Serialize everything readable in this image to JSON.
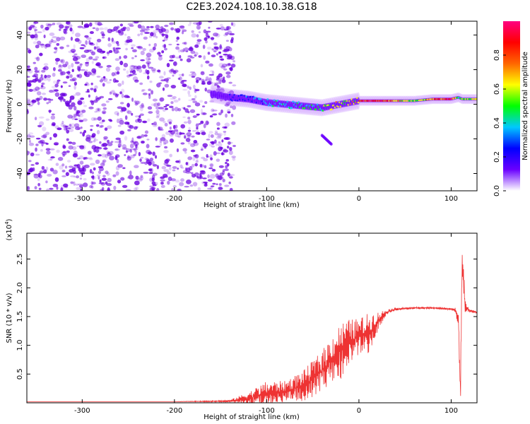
{
  "figure_title": "C2E3.2024.108.10.38.G18",
  "chart_data": [
    {
      "type": "heatmap",
      "title": "C2E3.2024.108.10.38.G18",
      "xlabel": "Height of straight line (km)",
      "ylabel": "Frequency (Hz)",
      "xlim": [
        -360,
        128
      ],
      "ylim": [
        -50,
        48
      ],
      "x_ticks": [
        -300,
        -200,
        -100,
        0,
        100
      ],
      "y_ticks": [
        -40,
        -20,
        0,
        20,
        40
      ],
      "colorbar": {
        "label": "Normalized spectral amplitude",
        "range": [
          0,
          1
        ],
        "ticks": [
          0.0,
          0.2,
          0.4,
          0.6,
          0.8
        ],
        "tick_labels": [
          "0.0",
          "0.2",
          "0.4",
          "0.6",
          "0.8"
        ],
        "colors": [
          "#ffffff",
          "#6a00ff",
          "#0000ff",
          "#00c8ff",
          "#00ff00",
          "#ffff00",
          "#ff6600",
          "#ff0000",
          "#ff0080"
        ]
      },
      "noise_region": {
        "x": [
          -360,
          -145
        ],
        "freq": [
          -50,
          48
        ],
        "color": "#6a00e0"
      },
      "signal_track": {
        "x": [
          -160,
          -140,
          -120,
          -100,
          -80,
          -60,
          -40,
          -30,
          -20,
          -10,
          0,
          20,
          40,
          60,
          80,
          100,
          108,
          112,
          128
        ],
        "freq": [
          6,
          4,
          3,
          1,
          0,
          -1,
          -2,
          -1,
          0,
          1,
          2,
          2,
          2,
          2,
          3,
          3,
          4,
          3,
          3
        ],
        "amplitude": [
          0.1,
          0.2,
          0.3,
          0.4,
          0.45,
          0.45,
          0.5,
          0.6,
          0.7,
          0.6,
          0.8,
          0.95,
          0.7,
          0.55,
          0.75,
          0.95,
          0.4,
          0.6,
          0.6
        ]
      },
      "secondary_feature": {
        "x": [
          -40,
          -30
        ],
        "freq": [
          -18,
          -23
        ]
      }
    },
    {
      "type": "line",
      "xlabel": "Height of straight line (km)",
      "ylabel": "SNR (10 * v/v)",
      "y_multiplier_label": "(x10",
      "y_multiplier_exponent": "4",
      "xlim": [
        -360,
        128
      ],
      "ylim": [
        0,
        2.95
      ],
      "x_ticks": [
        -300,
        -200,
        -100,
        0,
        100
      ],
      "y_ticks": [
        0.5,
        1.0,
        1.5,
        2.0,
        2.5
      ],
      "y_tick_labels": [
        "0.5",
        "1.0",
        "1.5",
        "2.0",
        "2.5"
      ],
      "series": [
        {
          "name": "SNR",
          "color": "#ee3333",
          "x": [
            -360,
            -300,
            -200,
            -140,
            -120,
            -100,
            -80,
            -60,
            -50,
            -40,
            -30,
            -20,
            -10,
            0,
            10,
            20,
            30,
            40,
            60,
            80,
            100,
            105,
            108,
            110,
            112,
            115,
            120,
            128
          ],
          "values": [
            0.02,
            0.02,
            0.02,
            0.03,
            0.08,
            0.15,
            0.2,
            0.3,
            0.42,
            0.55,
            0.75,
            0.9,
            1.05,
            1.15,
            1.2,
            1.4,
            1.58,
            1.63,
            1.65,
            1.65,
            1.63,
            1.6,
            1.4,
            0.1,
            2.6,
            1.7,
            1.6,
            1.57
          ],
          "noise_amplitude": [
            0,
            0,
            0,
            0.02,
            0.12,
            0.25,
            0.2,
            0.3,
            0.35,
            0.4,
            0.45,
            0.55,
            0.45,
            0.35,
            0.4,
            0.2,
            0.05,
            0.03,
            0.02,
            0.02,
            0.02,
            0.06,
            0.2,
            0.3,
            0.4,
            0.15,
            0.03,
            0.02
          ]
        }
      ]
    }
  ]
}
